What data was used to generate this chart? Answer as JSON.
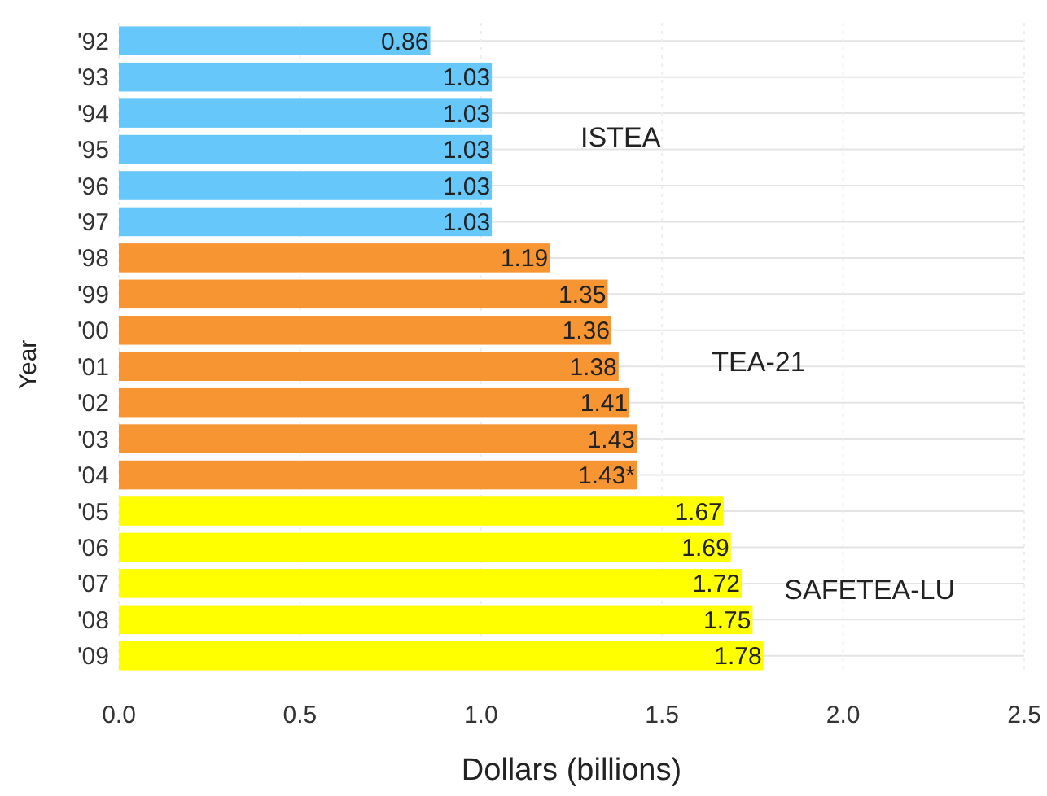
{
  "chart_data": {
    "type": "bar",
    "orientation": "horizontal",
    "xlabel": "Dollars (billions)",
    "ylabel": "Year",
    "categories": [
      "'92",
      "'93",
      "'94",
      "'95",
      "'96",
      "'97",
      "'98",
      "'99",
      "'00",
      "'01",
      "'02",
      "'03",
      "'04",
      "'05",
      "'06",
      "'07",
      "'08",
      "'09"
    ],
    "values": [
      0.86,
      1.03,
      1.03,
      1.03,
      1.03,
      1.03,
      1.19,
      1.35,
      1.36,
      1.38,
      1.41,
      1.43,
      1.43,
      1.67,
      1.69,
      1.72,
      1.75,
      1.78
    ],
    "colors": [
      "#66c8fa",
      "#66c8fa",
      "#66c8fa",
      "#66c8fa",
      "#66c8fa",
      "#66c8fa",
      "#f79533",
      "#f79533",
      "#f79533",
      "#f79533",
      "#f79533",
      "#f79533",
      "#f79533",
      "#ffff00",
      "#ffff00",
      "#ffff00",
      "#ffff00",
      "#ffff00"
    ],
    "value_labels": [
      "0.86",
      "1.03",
      "1.03",
      "1.03",
      "1.03",
      "1.03",
      "1.19",
      "1.35",
      "1.36",
      "1.38",
      "1.41",
      "1.43",
      "1.43*",
      "1.67",
      "1.69",
      "1.72",
      "1.75",
      "1.78"
    ],
    "xlim": [
      0,
      2.5
    ],
    "xticks": [
      {
        "value": 0,
        "label": "0.0"
      },
      {
        "value": 0.5,
        "label": "0.5"
      },
      {
        "value": 1,
        "label": "1.0"
      },
      {
        "value": 1.5,
        "label": "1.5"
      },
      {
        "value": 2,
        "label": "2.0"
      },
      {
        "value": 2.5,
        "label": "2.5"
      }
    ],
    "grid": true,
    "annotations": [
      "ISTEA",
      "TEA-21",
      "SAFETEA-LU"
    ]
  }
}
